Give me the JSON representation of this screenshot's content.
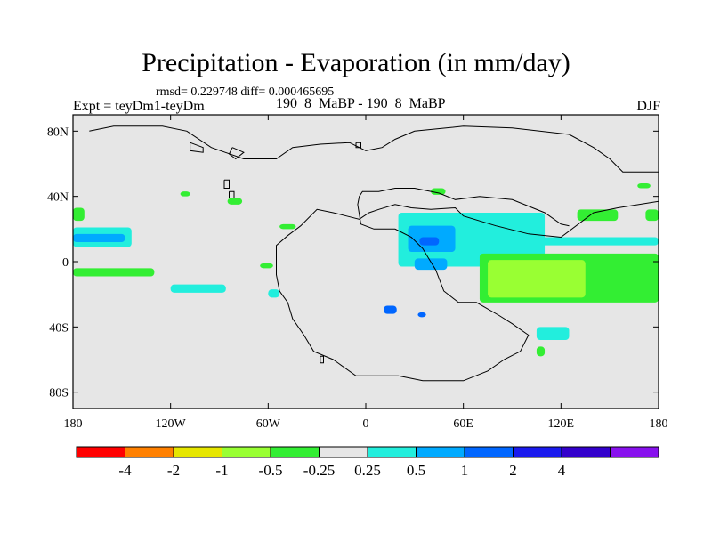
{
  "chart_data": {
    "type": "heatmap",
    "title": "Precipitation - Evaporation (in mm/day)",
    "stats_text": "rmsd= 0.229748 diff= 0.000465695",
    "left_label": "Expt = teyDm1-teyDm",
    "center_label": "190_8_MaBP - 190_8_MaBP",
    "right_label": "DJF",
    "xlim": [
      -180,
      180
    ],
    "ylim": [
      -90,
      90
    ],
    "x_ticks": [
      {
        "value": -180,
        "label": "180"
      },
      {
        "value": -120,
        "label": "120W"
      },
      {
        "value": -60,
        "label": "60W"
      },
      {
        "value": 0,
        "label": "0"
      },
      {
        "value": 60,
        "label": "60E"
      },
      {
        "value": 120,
        "label": "120E"
      },
      {
        "value": 180,
        "label": "180"
      }
    ],
    "y_ticks": [
      {
        "value": 80,
        "label": "80N"
      },
      {
        "value": 40,
        "label": "40N"
      },
      {
        "value": 0,
        "label": "0"
      },
      {
        "value": -40,
        "label": "40S"
      },
      {
        "value": -80,
        "label": "80S"
      }
    ],
    "colorbar": {
      "colors": [
        "#ff0000",
        "#ff8000",
        "#e6e600",
        "#99ff33",
        "#33ee33",
        "#e6e6e6",
        "#22eedd",
        "#00aaff",
        "#0066ff",
        "#1a1aee",
        "#3300cc",
        "#8811ee"
      ],
      "labels": [
        "-4",
        "-2",
        "-1",
        "-0.5",
        "-0.25",
        "0.25",
        "0.5",
        "1",
        "2",
        "4"
      ]
    },
    "background_color": "#e6e6e6",
    "regions": [
      {
        "name": "cyan-band-west-pacific",
        "color": "#22eedd",
        "lon": [
          -180,
          -144
        ],
        "lat": [
          9,
          21
        ]
      },
      {
        "name": "blue-band-west-pacific",
        "color": "#00aaff",
        "lon": [
          -180,
          -148
        ],
        "lat": [
          12,
          17
        ]
      },
      {
        "name": "green-band-south-pacific",
        "color": "#33ee33",
        "lon": [
          -180,
          -130
        ],
        "lat": [
          -9,
          -4
        ]
      },
      {
        "name": "green-patch-nw-pacific",
        "color": "#33ee33",
        "lon": [
          -180,
          -173
        ],
        "lat": [
          25,
          33
        ]
      },
      {
        "name": "cyan-patch-south-central-pacific",
        "color": "#22eedd",
        "lon": [
          -120,
          -86
        ],
        "lat": [
          -19,
          -14
        ]
      },
      {
        "name": "cyan-patch-mid-atlantic",
        "color": "#22eedd",
        "lon": [
          -60,
          -53
        ],
        "lat": [
          -22,
          -17
        ]
      },
      {
        "name": "green-patch-caribbean",
        "color": "#33ee33",
        "lon": [
          -53,
          -43
        ],
        "lat": [
          20,
          23
        ]
      },
      {
        "name": "green-patch-tropical-atlantic",
        "color": "#33ee33",
        "lon": [
          -65,
          -57
        ],
        "lat": [
          -4,
          -1
        ]
      },
      {
        "name": "green-patch-north-atlantic",
        "color": "#33ee33",
        "lon": [
          -114,
          -108
        ],
        "lat": [
          40,
          43
        ]
      },
      {
        "name": "green-patch-north-pacific",
        "color": "#33ee33",
        "lon": [
          -85,
          -76
        ],
        "lat": [
          35,
          39
        ]
      },
      {
        "name": "cyan-area-arabian-india",
        "color": "#22eedd",
        "lon": [
          20,
          110
        ],
        "lat": [
          -3,
          30
        ]
      },
      {
        "name": "blue-area-arabian",
        "color": "#00aaff",
        "lon": [
          26,
          55
        ],
        "lat": [
          6,
          22
        ]
      },
      {
        "name": "blue-core-arabian",
        "color": "#0066ff",
        "lon": [
          33,
          45
        ],
        "lat": [
          10,
          15
        ]
      },
      {
        "name": "blue-area-africa-south",
        "color": "#00aaff",
        "lon": [
          30,
          50
        ],
        "lat": [
          -5,
          2
        ]
      },
      {
        "name": "green-area-indian-ocean",
        "color": "#33ee33",
        "lon": [
          70,
          180
        ],
        "lat": [
          -25,
          5
        ]
      },
      {
        "name": "lightgreen-core-indian-ocean",
        "color": "#99ff33",
        "lon": [
          75,
          135
        ],
        "lat": [
          -22,
          1
        ]
      },
      {
        "name": "cyan-streak-east-pacific",
        "color": "#22eedd",
        "lon": [
          100,
          180
        ],
        "lat": [
          10,
          15
        ]
      },
      {
        "name": "blue-spot-south-atlantic",
        "color": "#0066ff",
        "lon": [
          11,
          19
        ],
        "lat": [
          -32,
          -27
        ]
      },
      {
        "name": "blue-spot-south-africa",
        "color": "#0066ff",
        "lon": [
          32,
          37
        ],
        "lat": [
          -34,
          -31
        ]
      },
      {
        "name": "cyan-patch-mozambique",
        "color": "#22eedd",
        "lon": [
          105,
          125
        ],
        "lat": [
          -48,
          -40
        ]
      },
      {
        "name": "green-spot-southern-ocean",
        "color": "#33ee33",
        "lon": [
          105,
          110
        ],
        "lat": [
          -58,
          -52
        ]
      },
      {
        "name": "green-patch-japan-sea",
        "color": "#33ee33",
        "lon": [
          130,
          155
        ],
        "lat": [
          25,
          32
        ]
      },
      {
        "name": "green-spot-caspian",
        "color": "#33ee33",
        "lon": [
          40,
          49
        ],
        "lat": [
          41,
          45
        ]
      },
      {
        "name": "green-spot-kamchatka",
        "color": "#33ee33",
        "lon": [
          167,
          175
        ],
        "lat": [
          45,
          48
        ]
      },
      {
        "name": "green-streak-nw-pacific",
        "color": "#33ee33",
        "lon": [
          172,
          180
        ],
        "lat": [
          25,
          32
        ]
      }
    ],
    "continent_outlines": [
      {
        "name": "pangea-main-outline",
        "points": [
          [
            -170,
            80
          ],
          [
            -155,
            83
          ],
          [
            -125,
            83
          ],
          [
            -110,
            80
          ],
          [
            -95,
            70
          ],
          [
            -75,
            63
          ],
          [
            -55,
            63
          ],
          [
            -45,
            70
          ],
          [
            -28,
            72
          ],
          [
            -10,
            73
          ],
          [
            0,
            68
          ],
          [
            10,
            70
          ],
          [
            18,
            75
          ],
          [
            30,
            80
          ],
          [
            60,
            83
          ],
          [
            90,
            82
          ],
          [
            125,
            78
          ],
          [
            140,
            70
          ],
          [
            150,
            63
          ],
          [
            158,
            55
          ],
          [
            180,
            55
          ]
        ]
      },
      {
        "name": "pangea-east-outline",
        "points": [
          [
            180,
            37
          ],
          [
            155,
            33
          ],
          [
            140,
            30
          ],
          [
            120,
            15
          ],
          [
            100,
            17
          ],
          [
            80,
            22
          ],
          [
            70,
            25
          ],
          [
            60,
            28
          ],
          [
            55,
            33
          ],
          [
            40,
            32
          ],
          [
            28,
            33
          ],
          [
            18,
            35
          ],
          [
            8,
            32
          ],
          [
            2,
            30
          ],
          [
            -4,
            26
          ],
          [
            -12,
            28
          ],
          [
            -20,
            30
          ],
          [
            -30,
            32
          ],
          [
            -40,
            22
          ],
          [
            -48,
            16
          ],
          [
            -55,
            10
          ],
          [
            -55,
            -8
          ],
          [
            -53,
            -18
          ],
          [
            -48,
            -25
          ],
          [
            -45,
            -35
          ],
          [
            -38,
            -45
          ],
          [
            -32,
            -55
          ],
          [
            -20,
            -60
          ],
          [
            -6,
            -70
          ],
          [
            20,
            -70
          ],
          [
            35,
            -73
          ],
          [
            60,
            -73
          ],
          [
            75,
            -67
          ],
          [
            85,
            -60
          ],
          [
            95,
            -55
          ],
          [
            100,
            -45
          ],
          [
            90,
            -38
          ],
          [
            82,
            -33
          ],
          [
            68,
            -25
          ],
          [
            57,
            -25
          ],
          [
            48,
            -18
          ],
          [
            43,
            -5
          ],
          [
            38,
            3
          ],
          [
            35,
            8
          ],
          [
            28,
            15
          ],
          [
            18,
            20
          ],
          [
            5,
            20
          ],
          [
            -3,
            23
          ],
          [
            -5,
            35
          ],
          [
            -4,
            40
          ],
          [
            -2,
            43
          ],
          [
            8,
            43
          ],
          [
            18,
            45
          ],
          [
            30,
            45
          ],
          [
            45,
            42
          ],
          [
            55,
            38
          ],
          [
            70,
            40
          ],
          [
            90,
            38
          ],
          [
            110,
            30
          ],
          [
            120,
            23
          ],
          [
            125,
            22
          ]
        ]
      },
      {
        "name": "north-island-outline",
        "points": [
          [
            -108,
            73
          ],
          [
            -100,
            70
          ],
          [
            -100,
            67
          ],
          [
            -108,
            68
          ],
          [
            -108,
            73
          ]
        ]
      },
      {
        "name": "west-island-outline",
        "points": [
          [
            -82,
            70
          ],
          [
            -75,
            67
          ],
          [
            -80,
            63
          ],
          [
            -84,
            66
          ],
          [
            -82,
            70
          ]
        ]
      },
      {
        "name": "small-island-a",
        "points": [
          [
            -87,
            50
          ],
          [
            -84,
            50
          ],
          [
            -84,
            45
          ],
          [
            -87,
            45
          ],
          [
            -87,
            50
          ]
        ]
      },
      {
        "name": "small-island-b",
        "points": [
          [
            -84,
            43
          ],
          [
            -81,
            43
          ],
          [
            -81,
            39
          ],
          [
            -84,
            39
          ],
          [
            -84,
            43
          ]
        ]
      },
      {
        "name": "small-island-c",
        "points": [
          [
            -6,
            73
          ],
          [
            -3,
            73
          ],
          [
            -3,
            70
          ],
          [
            -6,
            70
          ],
          [
            -6,
            73
          ]
        ]
      },
      {
        "name": "small-island-d",
        "points": [
          [
            -28,
            -58
          ],
          [
            -26,
            -58
          ],
          [
            -26,
            -62
          ],
          [
            -28,
            -62
          ],
          [
            -28,
            -58
          ]
        ]
      }
    ]
  }
}
